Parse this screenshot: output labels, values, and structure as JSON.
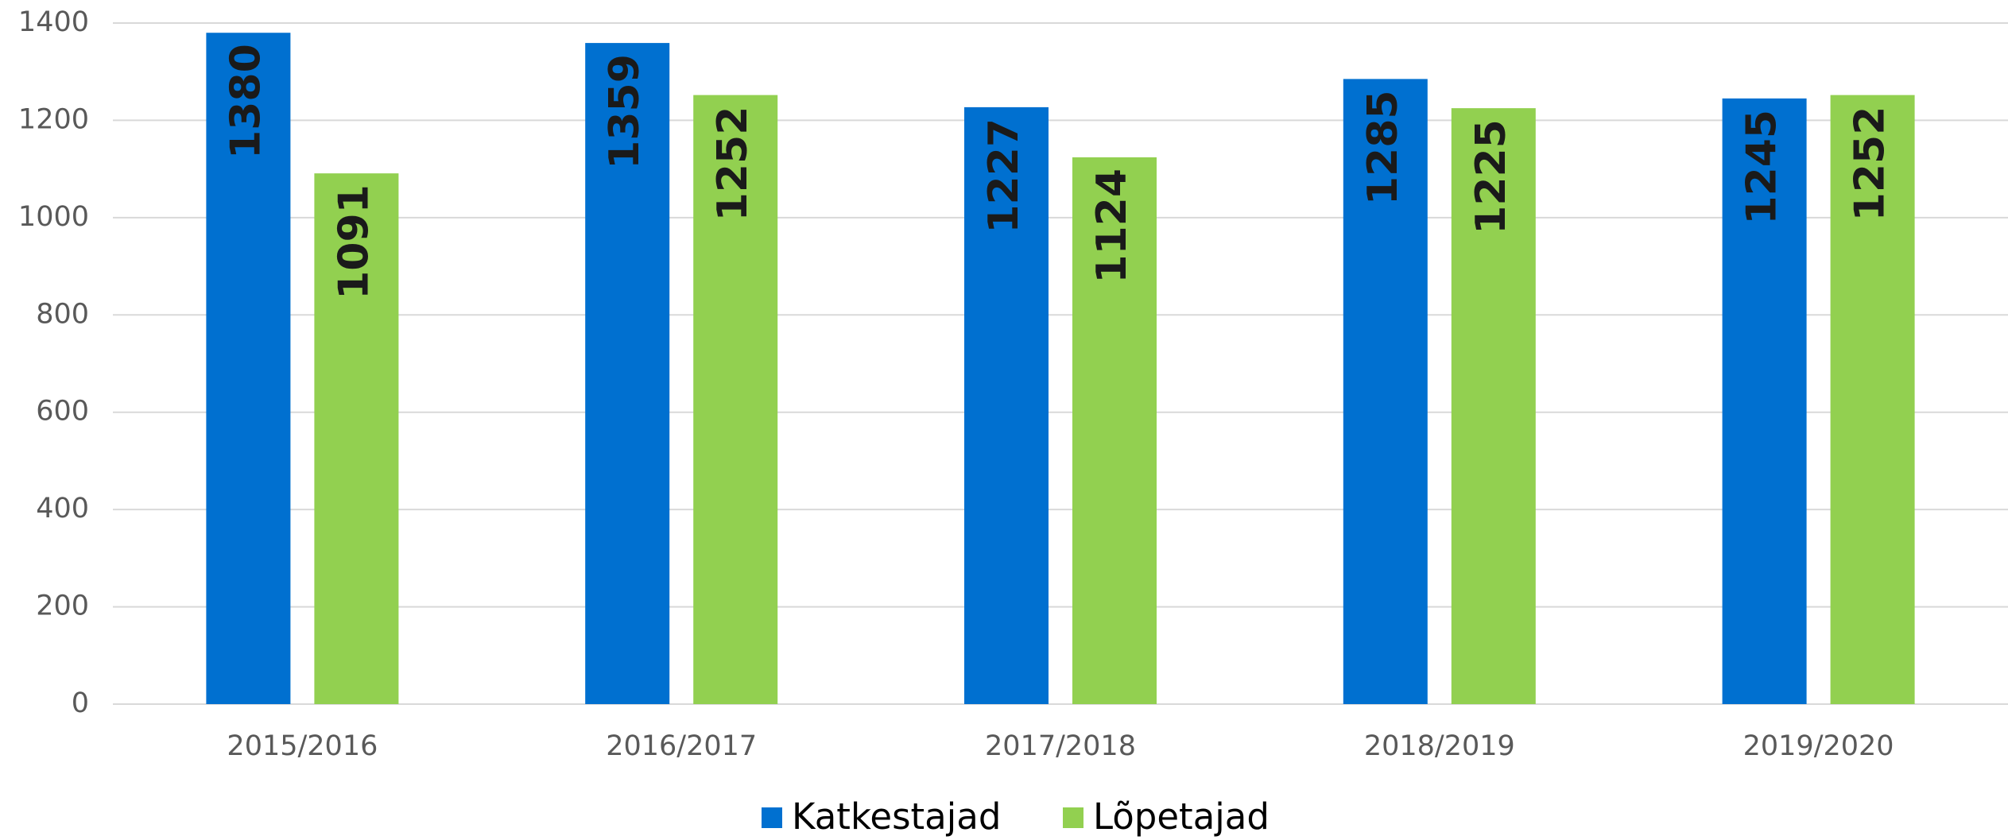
{
  "chart_data": {
    "type": "bar",
    "categories": [
      "2015/2016",
      "2016/2017",
      "2017/2018",
      "2018/2019",
      "2019/2020"
    ],
    "series": [
      {
        "name": "Katkestajad",
        "color": "#0070d0",
        "values": [
          1380,
          1359,
          1227,
          1285,
          1245
        ]
      },
      {
        "name": "Lõpetajad",
        "color": "#92d050",
        "values": [
          1091,
          1252,
          1124,
          1225,
          1252
        ]
      }
    ],
    "ylim": [
      0,
      1400
    ],
    "yticks": [
      0,
      200,
      400,
      600,
      800,
      1000,
      1200,
      1400
    ],
    "grid": true,
    "legend": "bottom"
  }
}
